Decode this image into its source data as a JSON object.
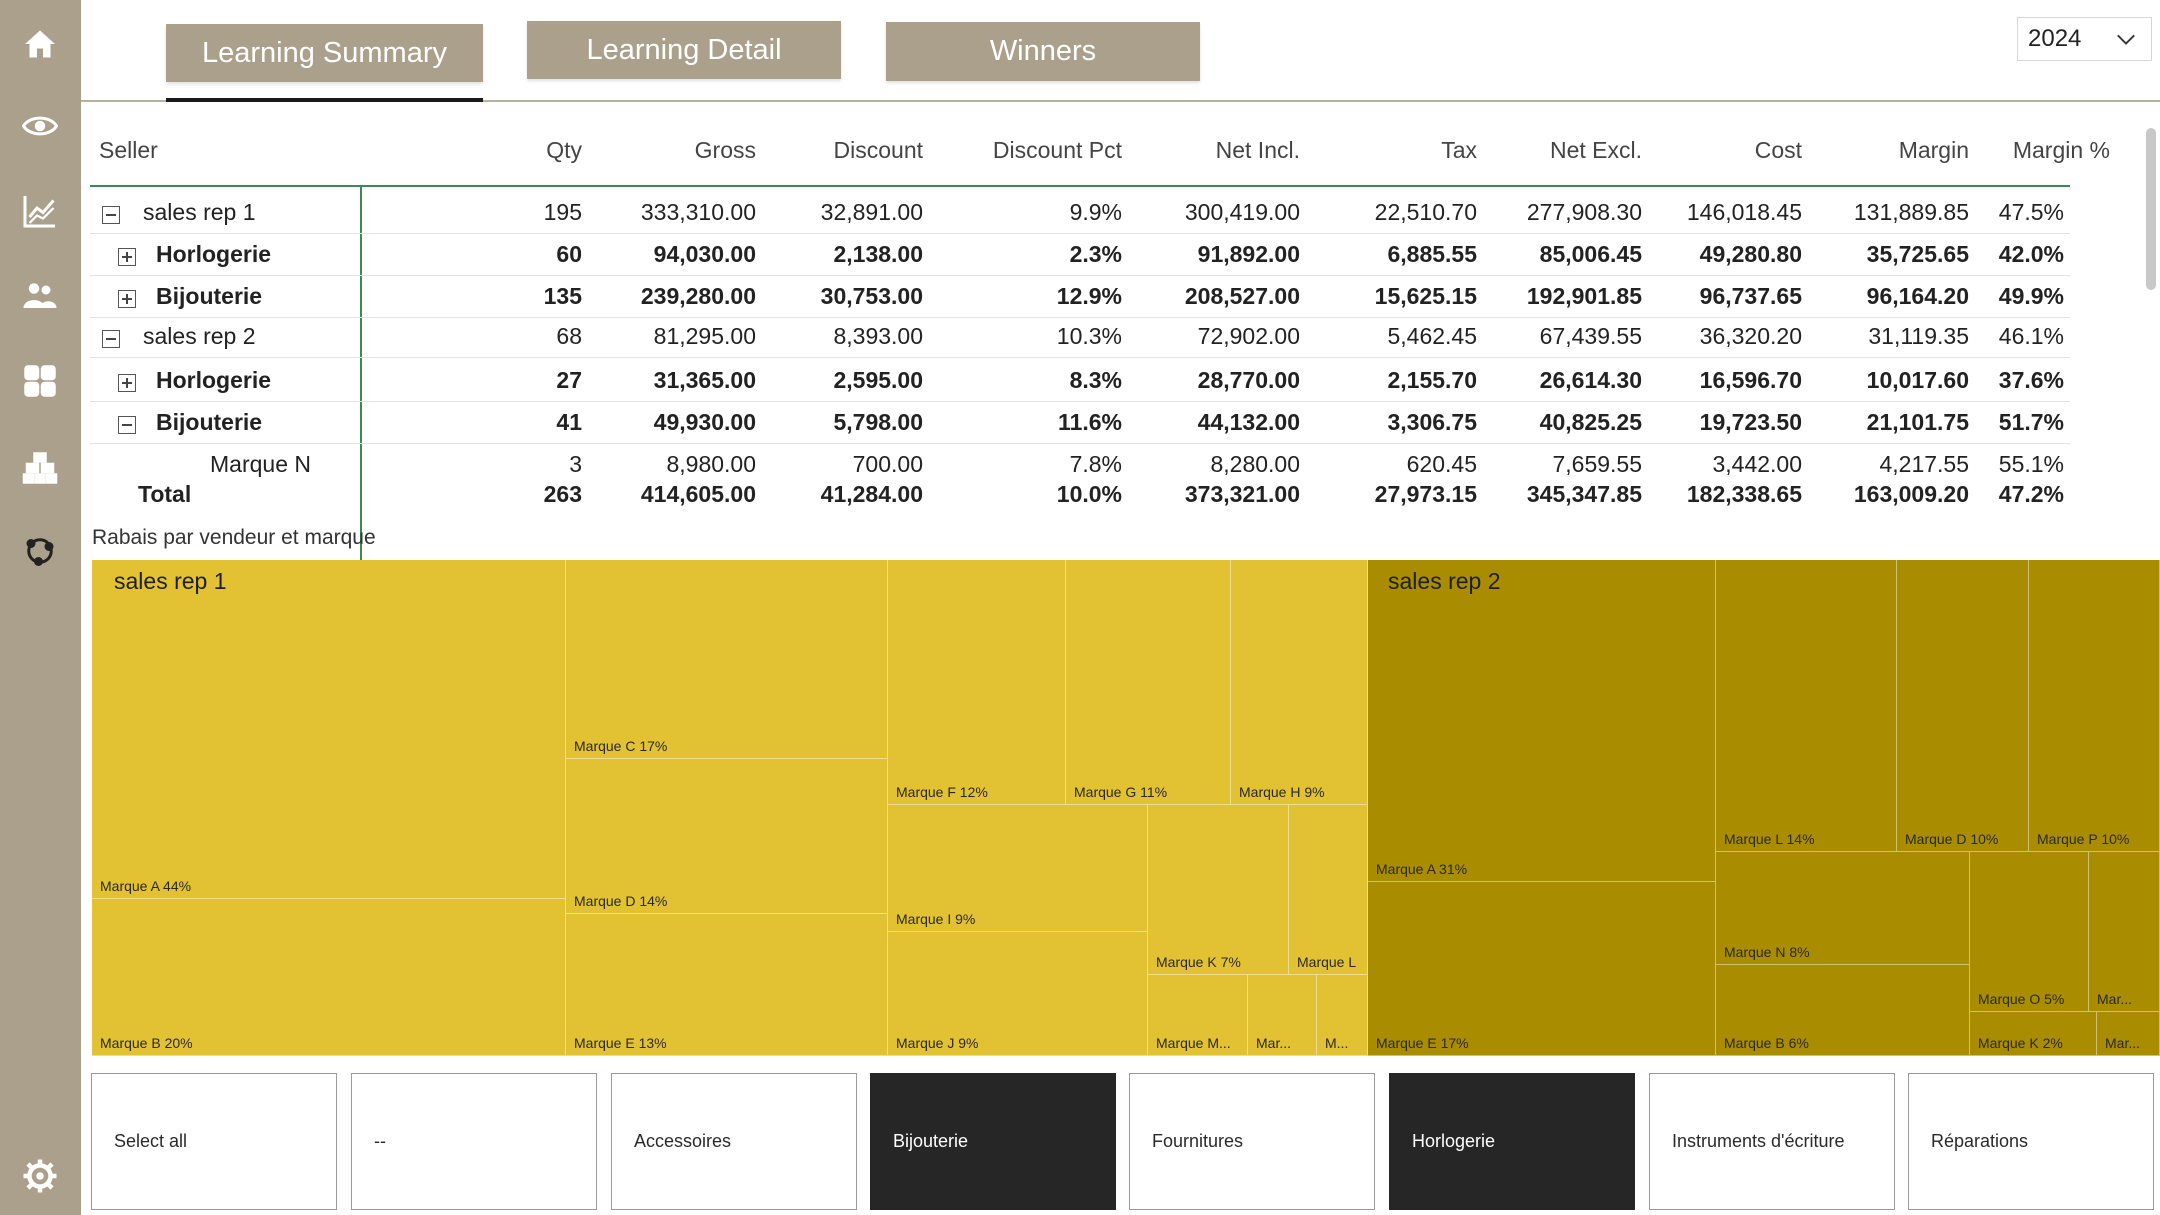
{
  "sidebar": {
    "icons": [
      "home-icon",
      "eye-icon",
      "line-chart-icon",
      "people-icon",
      "dashboard-icon",
      "boxes-icon",
      "network-icon",
      "gear-icon"
    ]
  },
  "tabs": [
    {
      "label": "Learning Summary",
      "active": true
    },
    {
      "label": "Learning Detail",
      "active": false
    },
    {
      "label": "Winners",
      "active": false
    }
  ],
  "year_filter": {
    "selected": "2024"
  },
  "matrix": {
    "columns": [
      "Seller",
      "Qty",
      "Gross",
      "Discount",
      "Discount Pct",
      "Net Incl.",
      "Tax",
      "Net Excl.",
      "Cost",
      "Margin",
      "Margin %"
    ],
    "rows": [
      {
        "label": "sales rep 1",
        "toggle": "collapse",
        "level": 0,
        "bold": false,
        "values": [
          "195",
          "333,310.00",
          "32,891.00",
          "9.9%",
          "300,419.00",
          "22,510.70",
          "277,908.30",
          "146,018.45",
          "131,889.85",
          "47.5%"
        ]
      },
      {
        "label": "Horlogerie",
        "toggle": "expand",
        "level": 1,
        "bold": true,
        "values": [
          "60",
          "94,030.00",
          "2,138.00",
          "2.3%",
          "91,892.00",
          "6,885.55",
          "85,006.45",
          "49,280.80",
          "35,725.65",
          "42.0%"
        ]
      },
      {
        "label": "Bijouterie",
        "toggle": "expand",
        "level": 1,
        "bold": true,
        "values": [
          "135",
          "239,280.00",
          "30,753.00",
          "12.9%",
          "208,527.00",
          "15,625.15",
          "192,901.85",
          "96,737.65",
          "96,164.20",
          "49.9%"
        ]
      },
      {
        "label": "sales rep 2",
        "toggle": "collapse",
        "level": 0,
        "bold": false,
        "values": [
          "68",
          "81,295.00",
          "8,393.00",
          "10.3%",
          "72,902.00",
          "5,462.45",
          "67,439.55",
          "36,320.20",
          "31,119.35",
          "46.1%"
        ]
      },
      {
        "label": "Horlogerie",
        "toggle": "expand",
        "level": 1,
        "bold": true,
        "values": [
          "27",
          "31,365.00",
          "2,595.00",
          "8.3%",
          "28,770.00",
          "2,155.70",
          "26,614.30",
          "16,596.70",
          "10,017.60",
          "37.6%"
        ]
      },
      {
        "label": "Bijouterie",
        "toggle": "collapse",
        "level": 1,
        "bold": true,
        "values": [
          "41",
          "49,930.00",
          "5,798.00",
          "11.6%",
          "44,132.00",
          "3,306.75",
          "40,825.25",
          "19,723.50",
          "21,101.75",
          "51.7%"
        ]
      },
      {
        "label": "Marque N",
        "toggle": "none",
        "level": 2,
        "bold": false,
        "values": [
          "3",
          "8,980.00",
          "700.00",
          "7.8%",
          "8,280.00",
          "620.45",
          "7,659.55",
          "3,442.00",
          "4,217.55",
          "55.1%"
        ]
      }
    ],
    "total": {
      "label": "Total",
      "values": [
        "263",
        "414,605.00",
        "41,284.00",
        "10.0%",
        "373,321.00",
        "27,973.15",
        "345,347.85",
        "182,338.65",
        "163,009.20",
        "47.2%"
      ]
    }
  },
  "treemap": {
    "title": "Rabais par vendeur et marque",
    "colors": {
      "sales rep 1": "#E2C133",
      "sales rep 2": "#A98C00"
    },
    "groups": [
      {
        "name": "sales rep 1",
        "tiles": [
          "Marque A 44%",
          "Marque B 20%",
          "Marque C 17%",
          "Marque D 14%",
          "Marque E 13%",
          "Marque F 12%",
          "Marque G 11%",
          "Marque H 9%",
          "Marque I 9%",
          "Marque J 9%",
          "Marque K 7%",
          "Marque L",
          "Marque M...",
          "Mar...",
          "M..."
        ]
      },
      {
        "name": "sales rep 2",
        "tiles": [
          "Marque A 31%",
          "Marque E 17%",
          "Marque L 14%",
          "Marque D 10%",
          "Marque P 10%",
          "Marque N 8%",
          "Marque B 6%",
          "Marque O 5%",
          "Mar...",
          "Marque K 2%",
          "Mar..."
        ]
      }
    ]
  },
  "category_slicer": {
    "options": [
      {
        "label": "Select all",
        "selected": false
      },
      {
        "label": "--",
        "selected": false
      },
      {
        "label": "Accessoires",
        "selected": false
      },
      {
        "label": "Bijouterie",
        "selected": true
      },
      {
        "label": "Fournitures",
        "selected": false
      },
      {
        "label": "Horlogerie",
        "selected": true
      },
      {
        "label": "Instruments d'écriture",
        "selected": false
      },
      {
        "label": "Réparations",
        "selected": false
      }
    ]
  }
}
